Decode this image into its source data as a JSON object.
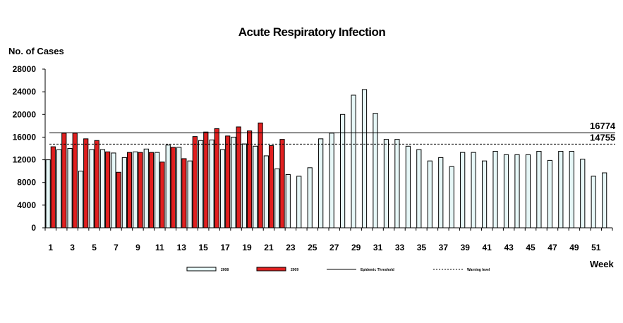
{
  "chart_data": {
    "type": "bar",
    "title": "Acute Respiratory Infection",
    "ylabel": "No. of Cases",
    "xlabel": "Week",
    "ylim": [
      0,
      28000
    ],
    "yticks": [
      0,
      4000,
      8000,
      12000,
      16000,
      20000,
      24000,
      28000
    ],
    "ytick_labels": [
      "0",
      "4000",
      "8000",
      "12000",
      "16000",
      "20000",
      "24000",
      "28000"
    ],
    "xtick_labels": [
      "1",
      "3",
      "5",
      "7",
      "9",
      "11",
      "13",
      "15",
      "17",
      "19",
      "21",
      "23",
      "25",
      "27",
      "29",
      "31",
      "33",
      "35",
      "37",
      "39",
      "41",
      "43",
      "45",
      "47",
      "49",
      "51"
    ],
    "categories": [
      1,
      2,
      3,
      4,
      5,
      6,
      7,
      8,
      9,
      10,
      11,
      12,
      13,
      14,
      15,
      16,
      17,
      18,
      19,
      20,
      21,
      22,
      23,
      24,
      25,
      26,
      27,
      28,
      29,
      30,
      31,
      32,
      33,
      34,
      35,
      36,
      37,
      38,
      39,
      40,
      41,
      42,
      43,
      44,
      45,
      46,
      47,
      48,
      49,
      50,
      51,
      52
    ],
    "series": [
      {
        "name": "2008",
        "color": "#e6f7f7",
        "values": [
          12000,
          13800,
          14000,
          10000,
          13800,
          13800,
          13200,
          12400,
          13400,
          13900,
          13300,
          14600,
          14200,
          11800,
          15400,
          15500,
          13800,
          16000,
          14800,
          14400,
          12700,
          10400,
          9400,
          9100,
          10600,
          15700,
          16700,
          20000,
          23400,
          24400,
          20200,
          15600,
          15600,
          14400,
          13800,
          11800,
          12400,
          10800,
          13300,
          13300,
          11800,
          13500,
          12900,
          12900,
          12900,
          13500,
          11900,
          13500,
          13500,
          12100,
          9100,
          9700
        ]
      },
      {
        "name": "2009",
        "color": "#e02020",
        "values": [
          14300,
          16700,
          16700,
          15700,
          15400,
          13400,
          9800,
          13300,
          13300,
          13300,
          11600,
          14200,
          12200,
          16100,
          16900,
          17500,
          16200,
          17800,
          17100,
          18500,
          14500,
          15600,
          null,
          null,
          null,
          null,
          null,
          null,
          null,
          null,
          null,
          null,
          null,
          null,
          null,
          null,
          null,
          null,
          null,
          null,
          null,
          null,
          null,
          null,
          null,
          null,
          null,
          null,
          null,
          null,
          null,
          null
        ]
      }
    ],
    "reference_lines": [
      {
        "name": "Epidemic Threshold",
        "value": 16774,
        "label": "16774",
        "style": "solid"
      },
      {
        "name": "Warning level",
        "value": 14755,
        "label": "14755",
        "style": "dashed"
      }
    ],
    "legend": {
      "placement": "bottom",
      "entries": [
        {
          "label": "2008",
          "kind": "bar",
          "color": "#e6f7f7"
        },
        {
          "label": "2009",
          "kind": "bar",
          "color": "#e02020"
        },
        {
          "label": "Epidemic Threshold",
          "kind": "line",
          "style": "solid"
        },
        {
          "label": "Warning level",
          "kind": "line",
          "style": "dashed"
        }
      ]
    },
    "grid": false
  }
}
